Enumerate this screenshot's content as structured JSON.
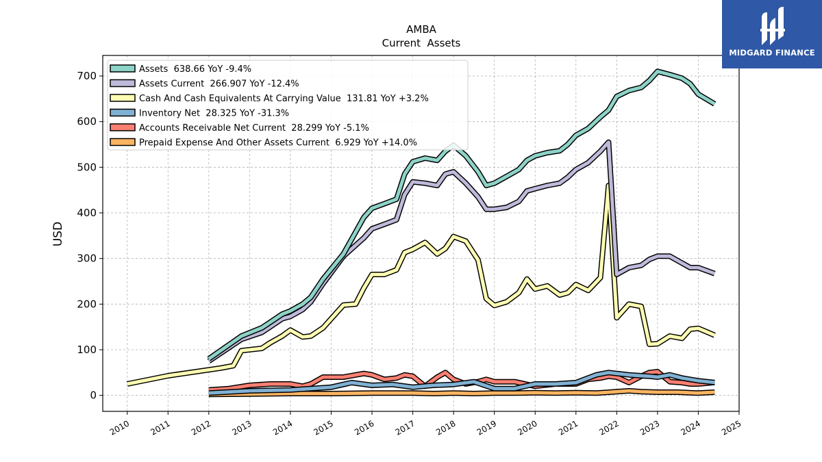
{
  "brand": {
    "name": "MIDGARD FINANCE",
    "bg_color": "#2f58a6"
  },
  "chart_data": {
    "type": "line",
    "title": "AMBA",
    "subtitle": "Current  Assets",
    "ylabel": "USD",
    "xlabel": "",
    "xlim": [
      2009.4,
      2025.0
    ],
    "ylim": [
      -35,
      745
    ],
    "x_ticks": [
      "2010",
      "2011",
      "2012",
      "2013",
      "2014",
      "2015",
      "2016",
      "2017",
      "2018",
      "2019",
      "2020",
      "2021",
      "2022",
      "2023",
      "2024",
      "2025"
    ],
    "y_ticks": [
      0,
      100,
      200,
      300,
      400,
      500,
      600,
      700
    ],
    "grid": true,
    "legend_position": "top-left",
    "series": [
      {
        "name": "Assets  638.66 YoY -9.4%",
        "color": "#8dd3c7",
        "points": [
          [
            2012.0,
            80
          ],
          [
            2012.8,
            130
          ],
          [
            2013.3,
            148
          ],
          [
            2013.5,
            160
          ],
          [
            2013.8,
            178
          ],
          [
            2014.0,
            185
          ],
          [
            2014.3,
            200
          ],
          [
            2014.5,
            215
          ],
          [
            2014.8,
            255
          ],
          [
            2015.3,
            310
          ],
          [
            2015.8,
            390
          ],
          [
            2016.0,
            410
          ],
          [
            2016.3,
            420
          ],
          [
            2016.6,
            430
          ],
          [
            2016.8,
            485
          ],
          [
            2017.0,
            512
          ],
          [
            2017.3,
            520
          ],
          [
            2017.6,
            515
          ],
          [
            2017.8,
            535
          ],
          [
            2018.0,
            548
          ],
          [
            2018.3,
            525
          ],
          [
            2018.6,
            490
          ],
          [
            2018.8,
            460
          ],
          [
            2019.0,
            465
          ],
          [
            2019.3,
            480
          ],
          [
            2019.6,
            495
          ],
          [
            2019.8,
            515
          ],
          [
            2020.0,
            525
          ],
          [
            2020.3,
            532
          ],
          [
            2020.6,
            536
          ],
          [
            2020.8,
            550
          ],
          [
            2021.0,
            570
          ],
          [
            2021.3,
            585
          ],
          [
            2021.6,
            610
          ],
          [
            2021.8,
            625
          ],
          [
            2022.0,
            655
          ],
          [
            2022.3,
            668
          ],
          [
            2022.6,
            675
          ],
          [
            2022.8,
            690
          ],
          [
            2023.0,
            710
          ],
          [
            2023.3,
            703
          ],
          [
            2023.6,
            695
          ],
          [
            2023.8,
            683
          ],
          [
            2024.0,
            660
          ],
          [
            2024.4,
            638.66
          ]
        ]
      },
      {
        "name": "Assets Current  266.907 YoY -12.4%",
        "color": "#bebada",
        "points": [
          [
            2012.0,
            75
          ],
          [
            2012.8,
            123
          ],
          [
            2013.3,
            138
          ],
          [
            2013.5,
            150
          ],
          [
            2013.8,
            168
          ],
          [
            2014.0,
            173
          ],
          [
            2014.3,
            188
          ],
          [
            2014.5,
            205
          ],
          [
            2014.8,
            245
          ],
          [
            2015.3,
            305
          ],
          [
            2015.8,
            345
          ],
          [
            2016.0,
            365
          ],
          [
            2016.3,
            375
          ],
          [
            2016.6,
            385
          ],
          [
            2016.8,
            440
          ],
          [
            2017.0,
            468
          ],
          [
            2017.3,
            465
          ],
          [
            2017.6,
            460
          ],
          [
            2017.8,
            485
          ],
          [
            2018.0,
            490
          ],
          [
            2018.3,
            465
          ],
          [
            2018.6,
            435
          ],
          [
            2018.8,
            408
          ],
          [
            2019.0,
            408
          ],
          [
            2019.3,
            412
          ],
          [
            2019.6,
            425
          ],
          [
            2019.8,
            448
          ],
          [
            2020.0,
            453
          ],
          [
            2020.3,
            460
          ],
          [
            2020.6,
            465
          ],
          [
            2020.8,
            478
          ],
          [
            2021.0,
            495
          ],
          [
            2021.3,
            510
          ],
          [
            2021.6,
            535
          ],
          [
            2021.8,
            555
          ],
          [
            2022.0,
            265
          ],
          [
            2022.3,
            280
          ],
          [
            2022.6,
            285
          ],
          [
            2022.8,
            298
          ],
          [
            2023.0,
            305
          ],
          [
            2023.3,
            305
          ],
          [
            2023.6,
            290
          ],
          [
            2023.8,
            280
          ],
          [
            2024.0,
            280
          ],
          [
            2024.4,
            266.907
          ]
        ]
      },
      {
        "name": "Cash And Cash Equivalents At Carrying Value  131.81 YoY +3.2%",
        "color": "#ffffb3",
        "points": [
          [
            2010.0,
            25
          ],
          [
            2011.0,
            43
          ],
          [
            2012.0,
            56
          ],
          [
            2012.3,
            60
          ],
          [
            2012.6,
            65
          ],
          [
            2012.8,
            98
          ],
          [
            2013.3,
            103
          ],
          [
            2013.5,
            115
          ],
          [
            2013.8,
            130
          ],
          [
            2014.0,
            143
          ],
          [
            2014.3,
            128
          ],
          [
            2014.5,
            130
          ],
          [
            2014.8,
            148
          ],
          [
            2015.3,
            198
          ],
          [
            2015.6,
            200
          ],
          [
            2015.8,
            235
          ],
          [
            2016.0,
            265
          ],
          [
            2016.3,
            265
          ],
          [
            2016.6,
            275
          ],
          [
            2016.8,
            313
          ],
          [
            2017.0,
            320
          ],
          [
            2017.3,
            335
          ],
          [
            2017.6,
            310
          ],
          [
            2017.8,
            322
          ],
          [
            2018.0,
            348
          ],
          [
            2018.3,
            338
          ],
          [
            2018.6,
            297
          ],
          [
            2018.8,
            212
          ],
          [
            2019.0,
            197
          ],
          [
            2019.3,
            205
          ],
          [
            2019.6,
            225
          ],
          [
            2019.8,
            255
          ],
          [
            2020.0,
            233
          ],
          [
            2020.3,
            240
          ],
          [
            2020.6,
            220
          ],
          [
            2020.8,
            225
          ],
          [
            2021.0,
            243
          ],
          [
            2021.3,
            230
          ],
          [
            2021.6,
            258
          ],
          [
            2021.8,
            460
          ],
          [
            2022.0,
            170
          ],
          [
            2022.3,
            200
          ],
          [
            2022.6,
            195
          ],
          [
            2022.8,
            112
          ],
          [
            2023.0,
            113
          ],
          [
            2023.3,
            130
          ],
          [
            2023.6,
            125
          ],
          [
            2023.8,
            145
          ],
          [
            2024.0,
            147
          ],
          [
            2024.4,
            131.81
          ]
        ]
      },
      {
        "name": "Inventory Net  28.325 YoY -31.3%",
        "color": "#80b1d3",
        "points": [
          [
            2012.0,
            5
          ],
          [
            2013.0,
            10
          ],
          [
            2014.0,
            12
          ],
          [
            2015.0,
            18
          ],
          [
            2015.5,
            28
          ],
          [
            2016.0,
            22
          ],
          [
            2016.5,
            24
          ],
          [
            2017.0,
            18
          ],
          [
            2017.5,
            22
          ],
          [
            2018.0,
            24
          ],
          [
            2018.5,
            30
          ],
          [
            2019.0,
            15
          ],
          [
            2019.5,
            15
          ],
          [
            2020.0,
            25
          ],
          [
            2020.5,
            25
          ],
          [
            2021.0,
            28
          ],
          [
            2021.5,
            45
          ],
          [
            2021.8,
            50
          ],
          [
            2022.0,
            48
          ],
          [
            2022.3,
            45
          ],
          [
            2022.6,
            43
          ],
          [
            2022.8,
            42
          ],
          [
            2023.0,
            40
          ],
          [
            2023.3,
            45
          ],
          [
            2023.6,
            38
          ],
          [
            2024.0,
            32
          ],
          [
            2024.4,
            28.325
          ]
        ]
      },
      {
        "name": "Accounts Receivable Net Current  28.299 YoY -5.1%",
        "color": "#fb8072",
        "points": [
          [
            2012.0,
            12
          ],
          [
            2012.5,
            15
          ],
          [
            2013.0,
            22
          ],
          [
            2013.5,
            25
          ],
          [
            2014.0,
            25
          ],
          [
            2014.3,
            20
          ],
          [
            2014.5,
            25
          ],
          [
            2014.8,
            40
          ],
          [
            2015.3,
            40
          ],
          [
            2015.8,
            48
          ],
          [
            2016.0,
            45
          ],
          [
            2016.3,
            35
          ],
          [
            2016.6,
            38
          ],
          [
            2016.8,
            45
          ],
          [
            2017.0,
            42
          ],
          [
            2017.3,
            20
          ],
          [
            2017.6,
            40
          ],
          [
            2017.8,
            50
          ],
          [
            2018.0,
            35
          ],
          [
            2018.3,
            25
          ],
          [
            2018.6,
            30
          ],
          [
            2018.8,
            35
          ],
          [
            2019.0,
            30
          ],
          [
            2019.5,
            30
          ],
          [
            2020.0,
            20
          ],
          [
            2020.5,
            25
          ],
          [
            2021.0,
            25
          ],
          [
            2021.3,
            35
          ],
          [
            2021.6,
            38
          ],
          [
            2021.8,
            42
          ],
          [
            2022.0,
            40
          ],
          [
            2022.3,
            28
          ],
          [
            2022.6,
            42
          ],
          [
            2022.8,
            50
          ],
          [
            2023.0,
            52
          ],
          [
            2023.3,
            30
          ],
          [
            2023.6,
            28
          ],
          [
            2023.8,
            25
          ],
          [
            2024.0,
            25
          ],
          [
            2024.4,
            28.299
          ]
        ]
      },
      {
        "name": "Prepaid Expense And Other Assets Current  6.929 YoY +14.0%",
        "color": "#fdb462",
        "points": [
          [
            2012.0,
            2
          ],
          [
            2013.0,
            3
          ],
          [
            2014.0,
            4
          ],
          [
            2015.0,
            4
          ],
          [
            2016.0,
            5
          ],
          [
            2017.0,
            5
          ],
          [
            2017.5,
            4
          ],
          [
            2018.0,
            5
          ],
          [
            2018.5,
            4
          ],
          [
            2019.0,
            5
          ],
          [
            2019.5,
            5
          ],
          [
            2020.0,
            6
          ],
          [
            2020.5,
            5
          ],
          [
            2021.0,
            6
          ],
          [
            2021.5,
            5
          ],
          [
            2022.0,
            8
          ],
          [
            2022.3,
            10
          ],
          [
            2022.6,
            8
          ],
          [
            2023.0,
            7
          ],
          [
            2023.5,
            7
          ],
          [
            2024.0,
            5
          ],
          [
            2024.4,
            6.929
          ]
        ]
      }
    ]
  }
}
